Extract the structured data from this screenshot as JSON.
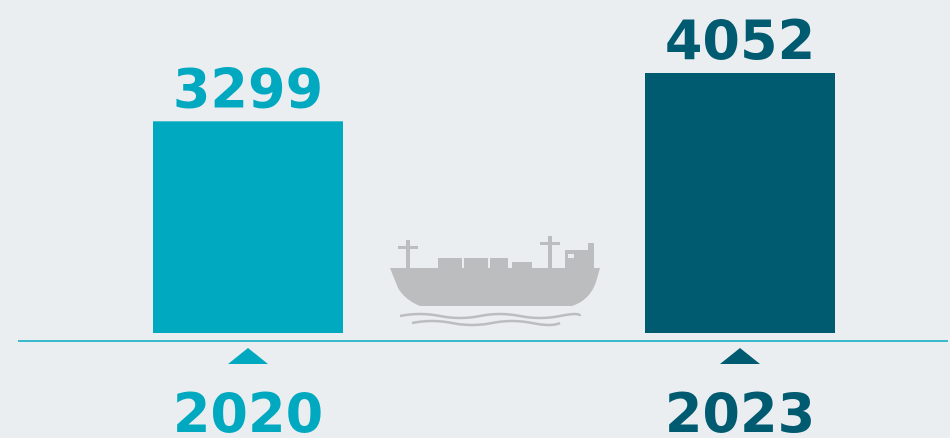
{
  "chart_data": {
    "type": "bar",
    "categories": [
      "2020",
      "2023"
    ],
    "values": [
      3299,
      4052
    ],
    "colors": [
      "#00a9bf",
      "#005a70"
    ]
  }
}
